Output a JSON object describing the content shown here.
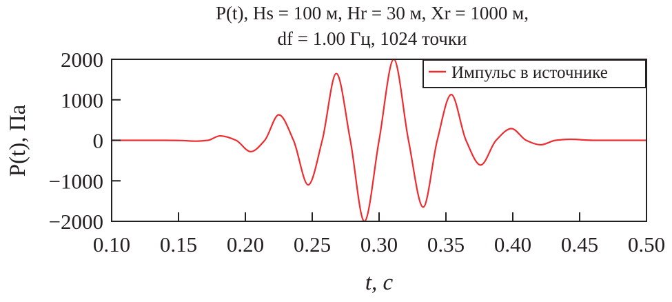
{
  "chart_data": {
    "type": "line",
    "title_line1": "P(t), Hs = 100 м, Hr = 30 м, Xr = 1000 м,",
    "title_line2": "df = 1.00 Гц, 1024 точки",
    "xlabel": "t, с",
    "ylabel": "P(t), Па",
    "xlim": [
      0.1,
      0.5
    ],
    "ylim": [
      -2000,
      2000
    ],
    "xticks": [
      "0.10",
      "0.15",
      "0.20",
      "0.25",
      "0.30",
      "0.35",
      "0.40",
      "0.45",
      "0.50"
    ],
    "yticks": [
      "2000",
      "1000",
      "0",
      "−1000",
      "−2000"
    ],
    "grid": false,
    "legend_position": "top-right",
    "series": [
      {
        "name": "Импульс в источнике",
        "color": "#ee2b2f",
        "x": [
          0.1,
          0.14,
          0.152,
          0.163,
          0.172,
          0.181,
          0.193,
          0.204,
          0.2145,
          0.225,
          0.236,
          0.247,
          0.2575,
          0.268,
          0.2785,
          0.289,
          0.3,
          0.311,
          0.322,
          0.333,
          0.3435,
          0.354,
          0.365,
          0.376,
          0.3875,
          0.399,
          0.41,
          0.421,
          0.432,
          0.443,
          0.46,
          0.5
        ],
        "y": [
          0,
          0,
          -5,
          -20,
          0,
          110,
          0,
          -280,
          0,
          630,
          0,
          -1100,
          0,
          1650,
          0,
          -2000,
          0,
          2000,
          0,
          -1650,
          0,
          1130,
          0,
          -610,
          0,
          290,
          0,
          -110,
          0,
          25,
          0,
          0
        ]
      }
    ]
  }
}
